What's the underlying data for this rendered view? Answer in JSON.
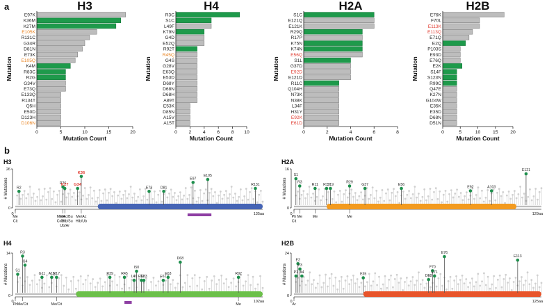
{
  "figure": {
    "panel_a_label": "a",
    "panel_b_label": "b"
  },
  "chart_data": [
    {
      "type": "bar",
      "orientation": "horizontal",
      "title": "H3",
      "xlabel": "Mutation Count",
      "ylabel": "Mutation",
      "xlim": [
        0,
        20
      ],
      "xticks": [
        "0",
        "5",
        "10",
        "15",
        "20"
      ],
      "categories": [
        "E97K",
        "K36M",
        "K27M",
        "E105K",
        "R131C",
        "G34R",
        "D81N",
        "E73K",
        "E105Q",
        "K4M",
        "R83C",
        "R2G",
        "G34V",
        "E73Q",
        "E133Q",
        "R134T",
        "Q5H",
        "E50D",
        "D123H",
        "D106N"
      ],
      "values": [
        18.5,
        17.5,
        16.5,
        12.5,
        11,
        10,
        9.5,
        8.5,
        8,
        7,
        6,
        6,
        6,
        6,
        5,
        5,
        5,
        5,
        5,
        5
      ],
      "highlight": [
        0,
        1,
        1,
        0,
        0,
        0,
        0,
        0,
        0,
        1,
        1,
        1,
        0,
        0,
        0,
        0,
        0,
        0,
        0,
        0
      ],
      "label_color": [
        "#222222",
        "#222222",
        "#222222",
        "#e8821e",
        "#222222",
        "#222222",
        "#222222",
        "#222222",
        "#e8821e",
        "#222222",
        "#222222",
        "#222222",
        "#222222",
        "#222222",
        "#222222",
        "#222222",
        "#222222",
        "#222222",
        "#222222",
        "#e8821e"
      ]
    },
    {
      "type": "bar",
      "orientation": "horizontal",
      "title": "H4",
      "xlabel": "Mutation Count",
      "ylabel": "Mutation",
      "xlim": [
        0,
        10
      ],
      "xticks": [
        "0",
        "2",
        "4",
        "6",
        "8",
        "10"
      ],
      "categories": [
        "R3C",
        "S1C",
        "L49F",
        "K79N",
        "G4D",
        "E52Q",
        "R92T",
        "R45Q",
        "G4S",
        "G28V",
        "E63Q",
        "E53D",
        "D68Y",
        "D68N",
        "D68H",
        "A89T",
        "E53K",
        "D85N",
        "A15V",
        "A15T"
      ],
      "values": [
        9,
        5,
        5,
        4,
        4,
        4,
        3,
        3,
        3,
        3,
        3,
        3,
        3,
        3,
        3,
        3,
        2,
        2,
        2,
        2
      ],
      "highlight": [
        1,
        1,
        0,
        1,
        0,
        0,
        1,
        0,
        0,
        0,
        0,
        0,
        0,
        0,
        0,
        0,
        0,
        0,
        0,
        0
      ],
      "label_color": [
        "#222222",
        "#222222",
        "#222222",
        "#222222",
        "#222222",
        "#222222",
        "#222222",
        "#e8821e",
        "#222222",
        "#222222",
        "#222222",
        "#222222",
        "#222222",
        "#222222",
        "#222222",
        "#222222",
        "#222222",
        "#222222",
        "#222222",
        "#222222"
      ]
    },
    {
      "type": "bar",
      "orientation": "horizontal",
      "title": "H2A",
      "xlabel": "Mutation Count",
      "ylabel": "Mutation",
      "xlim": [
        0,
        8
      ],
      "xticks": [
        "0",
        "2",
        "4",
        "6",
        "8"
      ],
      "categories": [
        "S1C",
        "E121Q",
        "E121K",
        "R29Q",
        "R17P",
        "K75N",
        "K74N",
        "E56Q",
        "S1L",
        "G37D",
        "E92D",
        "E121D",
        "R11C",
        "Q104H",
        "N73K",
        "N38K",
        "L34F",
        "H31Y",
        "E92K",
        "E61D"
      ],
      "values": [
        6,
        6,
        6,
        5,
        5,
        5,
        5,
        5,
        4,
        4,
        4,
        4,
        3,
        3,
        3,
        3,
        3,
        3,
        3,
        3
      ],
      "highlight": [
        1,
        0,
        0,
        1,
        0,
        1,
        1,
        0,
        1,
        0,
        0,
        0,
        1,
        0,
        0,
        0,
        0,
        0,
        0,
        0
      ],
      "label_color": [
        "#222222",
        "#222222",
        "#222222",
        "#222222",
        "#222222",
        "#222222",
        "#222222",
        "#e03c31",
        "#222222",
        "#222222",
        "#e03c31",
        "#222222",
        "#222222",
        "#222222",
        "#222222",
        "#222222",
        "#222222",
        "#222222",
        "#e03c31",
        "#e03c31"
      ]
    },
    {
      "type": "bar",
      "orientation": "horizontal",
      "title": "H2B",
      "xlabel": "Mutation Count",
      "ylabel": "Mutation",
      "xlim": [
        0,
        20
      ],
      "xticks": [
        "0",
        "5",
        "10",
        "15",
        "20"
      ],
      "categories": [
        "E76K",
        "F70L",
        "E113K",
        "E113Q",
        "E71Q",
        "E2Q",
        "P103S",
        "E93D",
        "E76Q",
        "E2K",
        "S14F",
        "S123N",
        "R99C",
        "Q47E",
        "K27N",
        "G104W",
        "E35K",
        "E35D",
        "D68N",
        "D51N"
      ],
      "values": [
        17.5,
        10.5,
        10.5,
        8.5,
        7.5,
        6.5,
        5,
        5,
        5,
        5.5,
        4,
        4,
        4,
        4,
        4,
        4,
        4,
        4,
        4,
        4
      ],
      "highlight": [
        0,
        0,
        0,
        0,
        0,
        1,
        0,
        0,
        0,
        1,
        1,
        1,
        1,
        0,
        0,
        0,
        0,
        0,
        0,
        0
      ],
      "label_color": [
        "#222222",
        "#222222",
        "#e03c31",
        "#e03c31",
        "#222222",
        "#222222",
        "#222222",
        "#222222",
        "#222222",
        "#222222",
        "#222222",
        "#222222",
        "#222222",
        "#222222",
        "#222222",
        "#222222",
        "#222222",
        "#222222",
        "#222222",
        "#222222"
      ]
    },
    {
      "type": "lollipop",
      "title": "H3",
      "ylabel": "# Mutations",
      "ylim": [
        0,
        26
      ],
      "yticks": [
        "0",
        "26"
      ],
      "length": 135,
      "length_label": "135aa",
      "domain_color": "#4564b5",
      "domain_range": [
        45,
        135
      ],
      "bar_range": [
        94,
        107
      ],
      "labeled_sites": [
        {
          "label": "R2",
          "pos": 2,
          "count": 11,
          "color": "#222222"
        },
        {
          "label": "R26",
          "pos": 26,
          "count": 14,
          "color": "#222222"
        },
        {
          "label": "K27",
          "pos": 27,
          "count": 13,
          "color": "#e03c31"
        },
        {
          "label": "G34",
          "pos": 34,
          "count": 13,
          "color": "#e03c31"
        },
        {
          "label": "K36",
          "pos": 36,
          "count": 21,
          "color": "#e03c31"
        },
        {
          "label": "E73",
          "pos": 73,
          "count": 11,
          "color": "#222222"
        },
        {
          "label": "D81",
          "pos": 81,
          "count": 11,
          "color": "#222222"
        },
        {
          "label": "E97",
          "pos": 97,
          "count": 17,
          "color": "#222222"
        },
        {
          "label": "E105",
          "pos": 105,
          "count": 19,
          "color": "#222222"
        },
        {
          "label": "R131",
          "pos": 131,
          "count": 13,
          "color": "#222222"
        }
      ],
      "ptm_labels": [
        {
          "pos": 0,
          "lines": [
            "Me",
            "Cit"
          ]
        },
        {
          "pos": 26,
          "lines": [
            "Me",
            "Cit"
          ]
        },
        {
          "pos": 27,
          "lines": [
            "Me/Ac/Bu",
            "Cr/Hib/Su",
            "Ub/Ar"
          ]
        },
        {
          "pos": 36,
          "lines": [
            "Me/Ac",
            "Hib/Ub"
          ]
        }
      ]
    },
    {
      "type": "lollipop",
      "title": "H2A",
      "ylabel": "# Mutations",
      "ylim": [
        0,
        16
      ],
      "yticks": [
        "0",
        "16"
      ],
      "length": 129,
      "length_label": "129aa",
      "domain_color": "#f39a1e",
      "domain_range": [
        17,
        116
      ],
      "bar_range": null,
      "labeled_sites": [
        {
          "label": "S1",
          "pos": 1,
          "count": 12,
          "color": "#222222"
        },
        {
          "label": "R3",
          "pos": 3,
          "count": 9,
          "color": "#222222"
        },
        {
          "label": "R11",
          "pos": 11,
          "count": 8,
          "color": "#222222"
        },
        {
          "label": "R17",
          "pos": 17,
          "count": 8,
          "color": "#222222"
        },
        {
          "label": "S19",
          "pos": 19,
          "count": 8,
          "color": "#222222"
        },
        {
          "label": "R29",
          "pos": 29,
          "count": 9,
          "color": "#222222"
        },
        {
          "label": "G37",
          "pos": 37,
          "count": 8,
          "color": "#222222"
        },
        {
          "label": "E56",
          "pos": 56,
          "count": 8,
          "color": "#222222"
        },
        {
          "label": "E92",
          "pos": 92,
          "count": 7,
          "color": "#222222"
        },
        {
          "label": "A103",
          "pos": 103,
          "count": 7,
          "color": "#222222"
        },
        {
          "label": "E121",
          "pos": 121,
          "count": 14,
          "color": "#222222"
        }
      ],
      "ptm_labels": [
        {
          "pos": 0,
          "lines": [
            "Ph",
            "Cit"
          ]
        },
        {
          "pos": 3,
          "lines": [
            "Me"
          ]
        },
        {
          "pos": 11,
          "lines": [
            "Me"
          ]
        },
        {
          "pos": 29,
          "lines": [
            "Me"
          ]
        }
      ]
    },
    {
      "type": "lollipop",
      "title": "H4",
      "ylabel": "# Mutations",
      "ylim": [
        0,
        14
      ],
      "yticks": [
        "0",
        "14"
      ],
      "length": 102,
      "length_label": "102aa",
      "domain_color": "#6cc04a",
      "domain_range": [
        25,
        102
      ],
      "bar_range": [
        45,
        48
      ],
      "labeled_sites": [
        {
          "label": "S1",
          "pos": 1,
          "count": 7,
          "color": "#222222"
        },
        {
          "label": "R3",
          "pos": 3,
          "count": 13,
          "color": "#222222"
        },
        {
          "label": "G4",
          "pos": 4,
          "count": 10,
          "color": "#222222"
        },
        {
          "label": "G11",
          "pos": 11,
          "count": 6,
          "color": "#222222"
        },
        {
          "label": "A15",
          "pos": 15,
          "count": 6,
          "color": "#222222"
        },
        {
          "label": "R17",
          "pos": 17,
          "count": 6,
          "color": "#222222"
        },
        {
          "label": "R39",
          "pos": 39,
          "count": 6,
          "color": "#222222"
        },
        {
          "label": "R45",
          "pos": 45,
          "count": 6,
          "color": "#222222"
        },
        {
          "label": "L49",
          "pos": 49,
          "count": 5,
          "color": "#222222"
        },
        {
          "label": "I50",
          "pos": 50,
          "count": 8,
          "color": "#222222"
        },
        {
          "label": "E52",
          "pos": 52,
          "count": 5,
          "color": "#222222"
        },
        {
          "label": "E53",
          "pos": 53,
          "count": 5,
          "color": "#222222"
        },
        {
          "label": "F61",
          "pos": 61,
          "count": 5,
          "color": "#222222"
        },
        {
          "label": "E63",
          "pos": 63,
          "count": 6,
          "color": "#222222"
        },
        {
          "label": "D68",
          "pos": 68,
          "count": 11,
          "color": "#222222"
        },
        {
          "label": "R92",
          "pos": 92,
          "count": 6,
          "color": "#222222"
        }
      ],
      "ptm_labels": [
        {
          "pos": 0,
          "lines": [
            "Ph"
          ]
        },
        {
          "pos": 3,
          "lines": [
            "Me/Cit"
          ]
        },
        {
          "pos": 17,
          "lines": [
            "Me/Cit"
          ]
        },
        {
          "pos": 92,
          "lines": [
            "Me"
          ]
        }
      ]
    },
    {
      "type": "lollipop",
      "title": "H2B",
      "ylabel": "# Mutations",
      "ylim": [
        0,
        24
      ],
      "yticks": [
        "0",
        "24"
      ],
      "length": 125,
      "length_label": "125aa",
      "domain_color": "#e8542a",
      "domain_range": [
        35,
        125
      ],
      "bar_range": null,
      "labeled_sites": [
        {
          "label": "P1",
          "pos": 1,
          "count": 11,
          "color": "#222222"
        },
        {
          "label": "E2",
          "pos": 2,
          "count": 18,
          "color": "#222222"
        },
        {
          "label": "P3",
          "pos": 3,
          "count": 15,
          "color": "#222222"
        },
        {
          "label": "A4",
          "pos": 4,
          "count": 11,
          "color": "#222222"
        },
        {
          "label": "E35",
          "pos": 35,
          "count": 10,
          "color": "#222222"
        },
        {
          "label": "D68",
          "pos": 68,
          "count": 9,
          "color": "#222222"
        },
        {
          "label": "F70",
          "pos": 70,
          "count": 14,
          "color": "#222222"
        },
        {
          "label": "E71",
          "pos": 71,
          "count": 11,
          "color": "#222222"
        },
        {
          "label": "E76",
          "pos": 76,
          "count": 22,
          "color": "#222222"
        },
        {
          "label": "E113",
          "pos": 113,
          "count": 20,
          "color": "#222222"
        }
      ],
      "ptm_labels": [
        {
          "pos": 0,
          "lines": [
            "Ar"
          ]
        }
      ]
    }
  ]
}
